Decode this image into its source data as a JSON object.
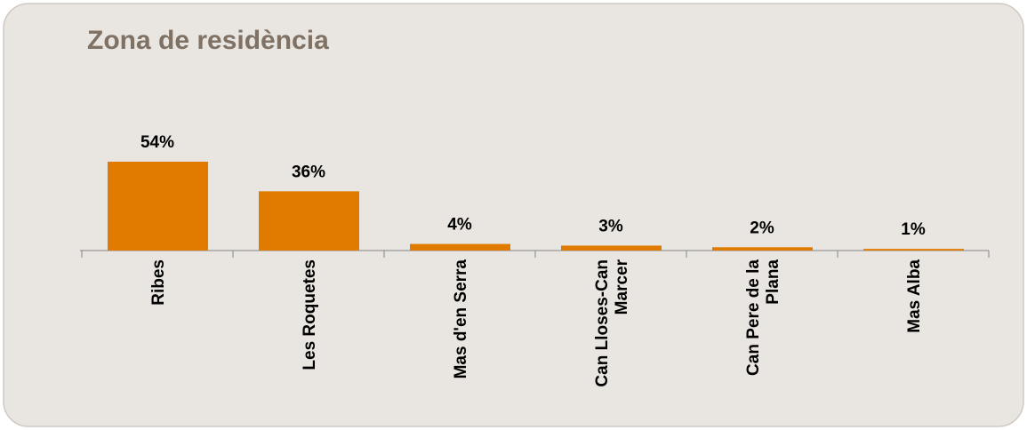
{
  "chart_data": {
    "type": "bar",
    "title": "Zona de residència",
    "categories": [
      "Ribes",
      "Les Roquetes",
      "Mas d'en Serra",
      "Can Lloses-Can Marcer",
      "Can Pere de la Plana",
      "Mas Alba"
    ],
    "values": [
      54,
      36,
      4,
      3,
      2,
      1
    ],
    "value_labels": [
      "54%",
      "36%",
      "4%",
      "3%",
      "2%",
      "1%"
    ],
    "color": "#e07b00"
  }
}
